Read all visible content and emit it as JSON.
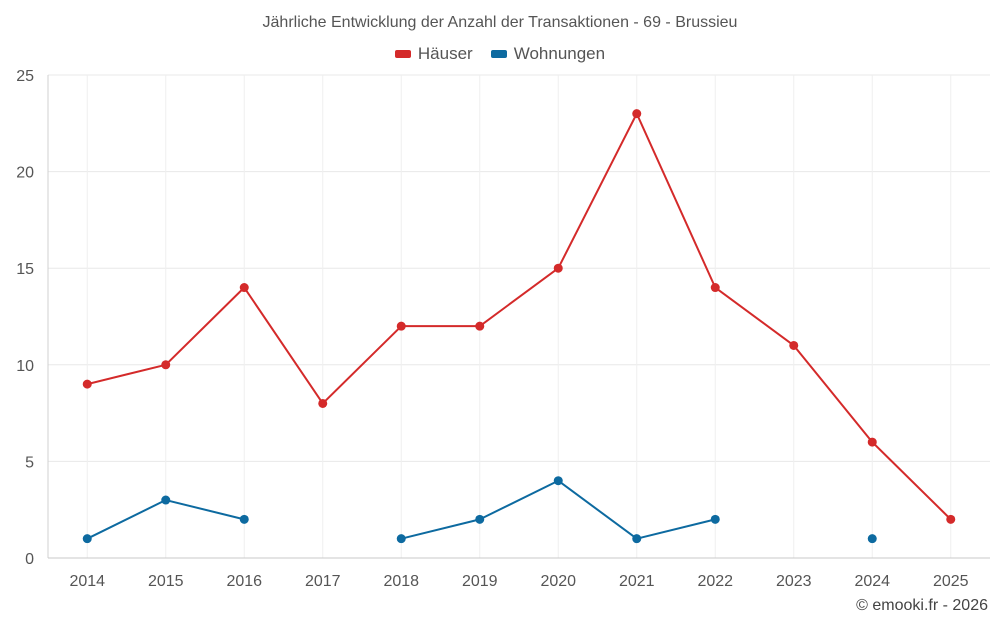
{
  "chart_data": {
    "type": "line",
    "title": "Jährliche Entwicklung der Anzahl der Transaktionen - 69 - Brussieu",
    "categories": [
      "2014",
      "2015",
      "2016",
      "2017",
      "2018",
      "2019",
      "2020",
      "2021",
      "2022",
      "2023",
      "2024",
      "2025"
    ],
    "series": [
      {
        "name": "Häuser",
        "color": "#d42a2a",
        "values": [
          9,
          10,
          14,
          8,
          12,
          12,
          15,
          23,
          14,
          11,
          6,
          2
        ]
      },
      {
        "name": "Wohnungen",
        "color": "#0d6aa0",
        "values": [
          1,
          3,
          2,
          null,
          1,
          2,
          4,
          1,
          2,
          null,
          1,
          null
        ]
      }
    ],
    "ylim": [
      0,
      25
    ],
    "yticks": [
      "0",
      "5",
      "10",
      "15",
      "20",
      "25"
    ],
    "grid": true,
    "legend": "top-center"
  },
  "footer": {
    "copyright": "© emooki.fr - 2026"
  }
}
